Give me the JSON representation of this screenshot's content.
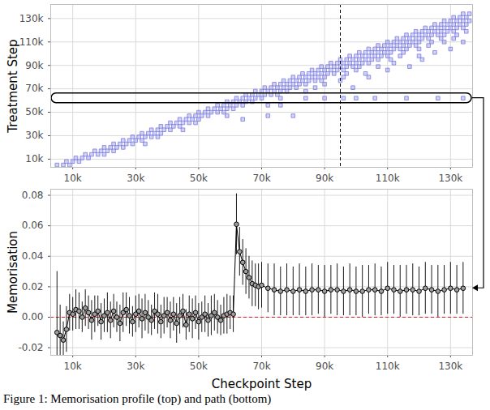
{
  "chart_data": [
    {
      "type": "scatter",
      "marker": "square",
      "color": "#7b7be0",
      "y_label": "Treatment Step",
      "xlim": [
        3000,
        137000
      ],
      "ylim": [
        3000,
        142000
      ],
      "xticks": [
        {
          "value": 10000,
          "label": "10k"
        },
        {
          "value": 30000,
          "label": "30k"
        },
        {
          "value": 50000,
          "label": "50k"
        },
        {
          "value": 70000,
          "label": "70k"
        },
        {
          "value": 90000,
          "label": "90k"
        },
        {
          "value": 110000,
          "label": "110k"
        },
        {
          "value": 130000,
          "label": "130k"
        }
      ],
      "yticks": [
        {
          "value": 10000,
          "label": "10k"
        },
        {
          "value": 30000,
          "label": "30k"
        },
        {
          "value": 50000,
          "label": "50k"
        },
        {
          "value": 70000,
          "label": "70k"
        },
        {
          "value": 90000,
          "label": "90k"
        },
        {
          "value": 110000,
          "label": "110k"
        },
        {
          "value": 130000,
          "label": "130k"
        }
      ],
      "grid": true,
      "marked_checkpoint": 95000,
      "highlighted_treatment": 62000,
      "rows": [
        {
          "y": 5000,
          "x": [
            5000,
            7000,
            9000
          ]
        },
        {
          "y": 8000,
          "x": [
            8000,
            10000,
            12000
          ]
        },
        {
          "y": 11000,
          "x": [
            11000,
            13000,
            15000
          ]
        },
        {
          "y": 14000,
          "x": [
            14000,
            16000,
            18000,
            20000
          ]
        },
        {
          "y": 17000,
          "x": [
            17000,
            19000,
            21000,
            23000
          ]
        },
        {
          "y": 20000,
          "x": [
            20000,
            22000,
            24000,
            26000
          ]
        },
        {
          "y": 23000,
          "x": [
            23000,
            25000,
            27000,
            29000,
            33000
          ]
        },
        {
          "y": 26000,
          "x": [
            26000,
            28000,
            30000,
            32000
          ]
        },
        {
          "y": 29000,
          "x": [
            29000,
            31000,
            33000,
            35000,
            37000
          ]
        },
        {
          "y": 32000,
          "x": [
            32000,
            34000,
            36000,
            38000
          ]
        },
        {
          "y": 35000,
          "x": [
            35000,
            37000,
            39000,
            41000,
            45000
          ]
        },
        {
          "y": 38000,
          "x": [
            38000,
            40000,
            42000,
            44000
          ]
        },
        {
          "y": 41000,
          "x": [
            41000,
            43000,
            45000,
            47000,
            49000
          ]
        },
        {
          "y": 44000,
          "x": [
            44000,
            46000,
            48000,
            50000,
            64000
          ]
        },
        {
          "y": 47000,
          "x": [
            47000,
            49000,
            51000,
            53000,
            59000,
            72000,
            80000
          ]
        },
        {
          "y": 50000,
          "x": [
            50000,
            52000,
            54000,
            56000,
            58000
          ]
        },
        {
          "y": 53000,
          "x": [
            53000,
            55000,
            57000,
            59000,
            61000
          ]
        },
        {
          "y": 56000,
          "x": [
            56000,
            58000,
            60000,
            62000,
            64000,
            72000,
            76000
          ]
        },
        {
          "y": 59000,
          "x": [
            59000,
            61000,
            63000,
            65000,
            67000
          ]
        },
        {
          "y": 62000,
          "x": [
            62000,
            64000,
            66000,
            68000,
            70000,
            76000,
            84000,
            90000,
            96000,
            100000,
            106000,
            116000,
            126000,
            134000
          ]
        },
        {
          "y": 65000,
          "x": [
            65000,
            67000,
            69000,
            71000,
            73000,
            75000
          ]
        },
        {
          "y": 68000,
          "x": [
            68000,
            70000,
            72000,
            74000,
            76000,
            78000,
            84000
          ]
        },
        {
          "y": 71000,
          "x": [
            71000,
            73000,
            75000,
            77000,
            79000,
            81000,
            87000,
            99000
          ]
        },
        {
          "y": 74000,
          "x": [
            74000,
            76000,
            78000,
            80000,
            82000,
            84000,
            90000
          ]
        },
        {
          "y": 77000,
          "x": [
            77000,
            79000,
            81000,
            83000,
            85000,
            87000,
            89000,
            95000
          ]
        },
        {
          "y": 80000,
          "x": [
            80000,
            82000,
            84000,
            86000,
            88000,
            90000,
            96000,
            104000
          ]
        },
        {
          "y": 83000,
          "x": [
            83000,
            85000,
            87000,
            89000,
            91000,
            93000,
            97000,
            103000
          ]
        },
        {
          "y": 86000,
          "x": [
            86000,
            88000,
            90000,
            92000,
            94000,
            96000,
            100000,
            110000
          ]
        },
        {
          "y": 89000,
          "x": [
            89000,
            91000,
            93000,
            95000,
            97000,
            99000,
            101000,
            107000,
            117000
          ]
        },
        {
          "y": 92000,
          "x": [
            92000,
            94000,
            96000,
            98000,
            100000,
            102000,
            104000,
            112000
          ]
        },
        {
          "y": 95000,
          "x": [
            95000,
            97000,
            99000,
            101000,
            103000,
            105000,
            107000,
            111000,
            121000
          ]
        },
        {
          "y": 98000,
          "x": [
            98000,
            100000,
            102000,
            104000,
            106000,
            108000,
            110000,
            114000,
            120000
          ]
        },
        {
          "y": 101000,
          "x": [
            101000,
            103000,
            105000,
            107000,
            109000,
            111000,
            115000,
            125000
          ]
        },
        {
          "y": 104000,
          "x": [
            104000,
            106000,
            108000,
            110000,
            112000,
            114000,
            116000,
            120000,
            130000
          ]
        },
        {
          "y": 107000,
          "x": [
            107000,
            109000,
            111000,
            113000,
            115000,
            117000,
            119000,
            123000
          ]
        },
        {
          "y": 110000,
          "x": [
            110000,
            112000,
            114000,
            116000,
            118000,
            120000,
            124000,
            128000,
            134000
          ]
        },
        {
          "y": 113000,
          "x": [
            113000,
            115000,
            117000,
            119000,
            121000,
            123000,
            127000,
            131000
          ]
        },
        {
          "y": 116000,
          "x": [
            116000,
            118000,
            120000,
            122000,
            124000,
            126000,
            128000,
            132000
          ]
        },
        {
          "y": 119000,
          "x": [
            119000,
            121000,
            123000,
            125000,
            127000,
            129000,
            131000,
            135000
          ]
        },
        {
          "y": 122000,
          "x": [
            122000,
            124000,
            126000,
            128000,
            130000,
            132000,
            134000
          ]
        },
        {
          "y": 125000,
          "x": [
            125000,
            127000,
            129000,
            131000,
            133000,
            135000
          ]
        },
        {
          "y": 128000,
          "x": [
            128000,
            130000,
            132000,
            134000,
            136000
          ]
        },
        {
          "y": 131000,
          "x": [
            131000,
            133000,
            135000
          ]
        },
        {
          "y": 134000,
          "x": [
            134000,
            136000
          ]
        }
      ]
    },
    {
      "type": "line",
      "marker": "circle",
      "color": "#000000",
      "x_label": "Checkpoint Step",
      "y_label": "Memorisation",
      "xlim": [
        3000,
        137000
      ],
      "ylim": [
        -0.025,
        0.084
      ],
      "xticks": [
        {
          "value": 10000,
          "label": "10k"
        },
        {
          "value": 30000,
          "label": "30k"
        },
        {
          "value": 50000,
          "label": "50k"
        },
        {
          "value": 70000,
          "label": "70k"
        },
        {
          "value": 90000,
          "label": "90k"
        },
        {
          "value": 110000,
          "label": "110k"
        },
        {
          "value": 130000,
          "label": "130k"
        }
      ],
      "yticks": [
        -0.02,
        {
          "value": 0,
          "label": "0.00"
        },
        0.02,
        0.04,
        0.06,
        0.08
      ],
      "grid": true,
      "reference_line": 0,
      "x": [
        5000,
        6000,
        7000,
        8000,
        9000,
        10000,
        11000,
        12000,
        13000,
        14000,
        15000,
        16000,
        17000,
        18000,
        19000,
        20000,
        21000,
        22000,
        23000,
        24000,
        25000,
        26000,
        27000,
        28000,
        29000,
        30000,
        31000,
        32000,
        33000,
        34000,
        35000,
        36000,
        37000,
        38000,
        39000,
        40000,
        41000,
        42000,
        43000,
        44000,
        45000,
        46000,
        47000,
        48000,
        49000,
        50000,
        51000,
        52000,
        53000,
        54000,
        55000,
        56000,
        57000,
        58000,
        59000,
        60000,
        61000,
        62000,
        63000,
        64000,
        65000,
        66000,
        67000,
        68000,
        69000,
        70000,
        72000,
        74000,
        76000,
        78000,
        80000,
        82000,
        84000,
        86000,
        88000,
        90000,
        92000,
        94000,
        96000,
        98000,
        100000,
        102000,
        104000,
        106000,
        108000,
        110000,
        112000,
        114000,
        116000,
        118000,
        120000,
        122000,
        124000,
        126000,
        128000,
        130000,
        132000,
        134000
      ],
      "values": [
        -0.01,
        -0.012,
        -0.015,
        -0.008,
        0.003,
        0.002,
        0.005,
        0.004,
        0.0,
        0.006,
        0.003,
        -0.002,
        0.002,
        0.004,
        -0.003,
        0.001,
        0.003,
        -0.002,
        0.004,
        0.0,
        -0.004,
        0.003,
        0.005,
        0.001,
        -0.003,
        0.002,
        0.004,
        -0.001,
        0.003,
        0.0,
        -0.002,
        0.004,
        0.002,
        -0.003,
        0.001,
        0.003,
        -0.002,
        0.002,
        -0.004,
        0.001,
        0.004,
        -0.005,
        0.002,
        -0.001,
        0.003,
        -0.003,
        0.0,
        0.002,
        -0.002,
        0.001,
        0.003,
        0.0,
        -0.002,
        0.001,
        0.002,
        0.003,
        0.002,
        0.061,
        0.043,
        0.036,
        0.03,
        0.026,
        0.022,
        0.021,
        0.02,
        0.021,
        0.019,
        0.018,
        0.017,
        0.018,
        0.017,
        0.018,
        0.017,
        0.018,
        0.018,
        0.017,
        0.018,
        0.018,
        0.017,
        0.018,
        0.017,
        0.017,
        0.018,
        0.018,
        0.017,
        0.019,
        0.018,
        0.017,
        0.018,
        0.018,
        0.017,
        0.019,
        0.018,
        0.017,
        0.018,
        0.019,
        0.018,
        0.019
      ],
      "errors": [
        0.04,
        0.02,
        0.012,
        0.015,
        0.012,
        0.011,
        0.013,
        0.012,
        0.01,
        0.012,
        0.011,
        0.013,
        0.012,
        0.01,
        0.012,
        0.011,
        0.013,
        0.012,
        0.011,
        0.01,
        0.012,
        0.013,
        0.011,
        0.012,
        0.01,
        0.012,
        0.011,
        0.013,
        0.012,
        0.011,
        0.01,
        0.012,
        0.013,
        0.011,
        0.012,
        0.01,
        0.012,
        0.011,
        0.013,
        0.012,
        0.011,
        0.01,
        0.012,
        0.013,
        0.011,
        0.012,
        0.01,
        0.012,
        0.011,
        0.013,
        0.012,
        0.011,
        0.01,
        0.012,
        0.013,
        0.011,
        0.012,
        0.02,
        0.016,
        0.015,
        0.015,
        0.014,
        0.015,
        0.014,
        0.015,
        0.015,
        0.016,
        0.017,
        0.016,
        0.017,
        0.016,
        0.017,
        0.016,
        0.017,
        0.016,
        0.017,
        0.016,
        0.017,
        0.016,
        0.017,
        0.016,
        0.017,
        0.016,
        0.017,
        0.016,
        0.017,
        0.016,
        0.017,
        0.016,
        0.017,
        0.016,
        0.017,
        0.016,
        0.017,
        0.016,
        0.017,
        0.016,
        0.017
      ]
    }
  ],
  "caption": "Figure 1: Memorisation profile (top) and path (bottom)"
}
